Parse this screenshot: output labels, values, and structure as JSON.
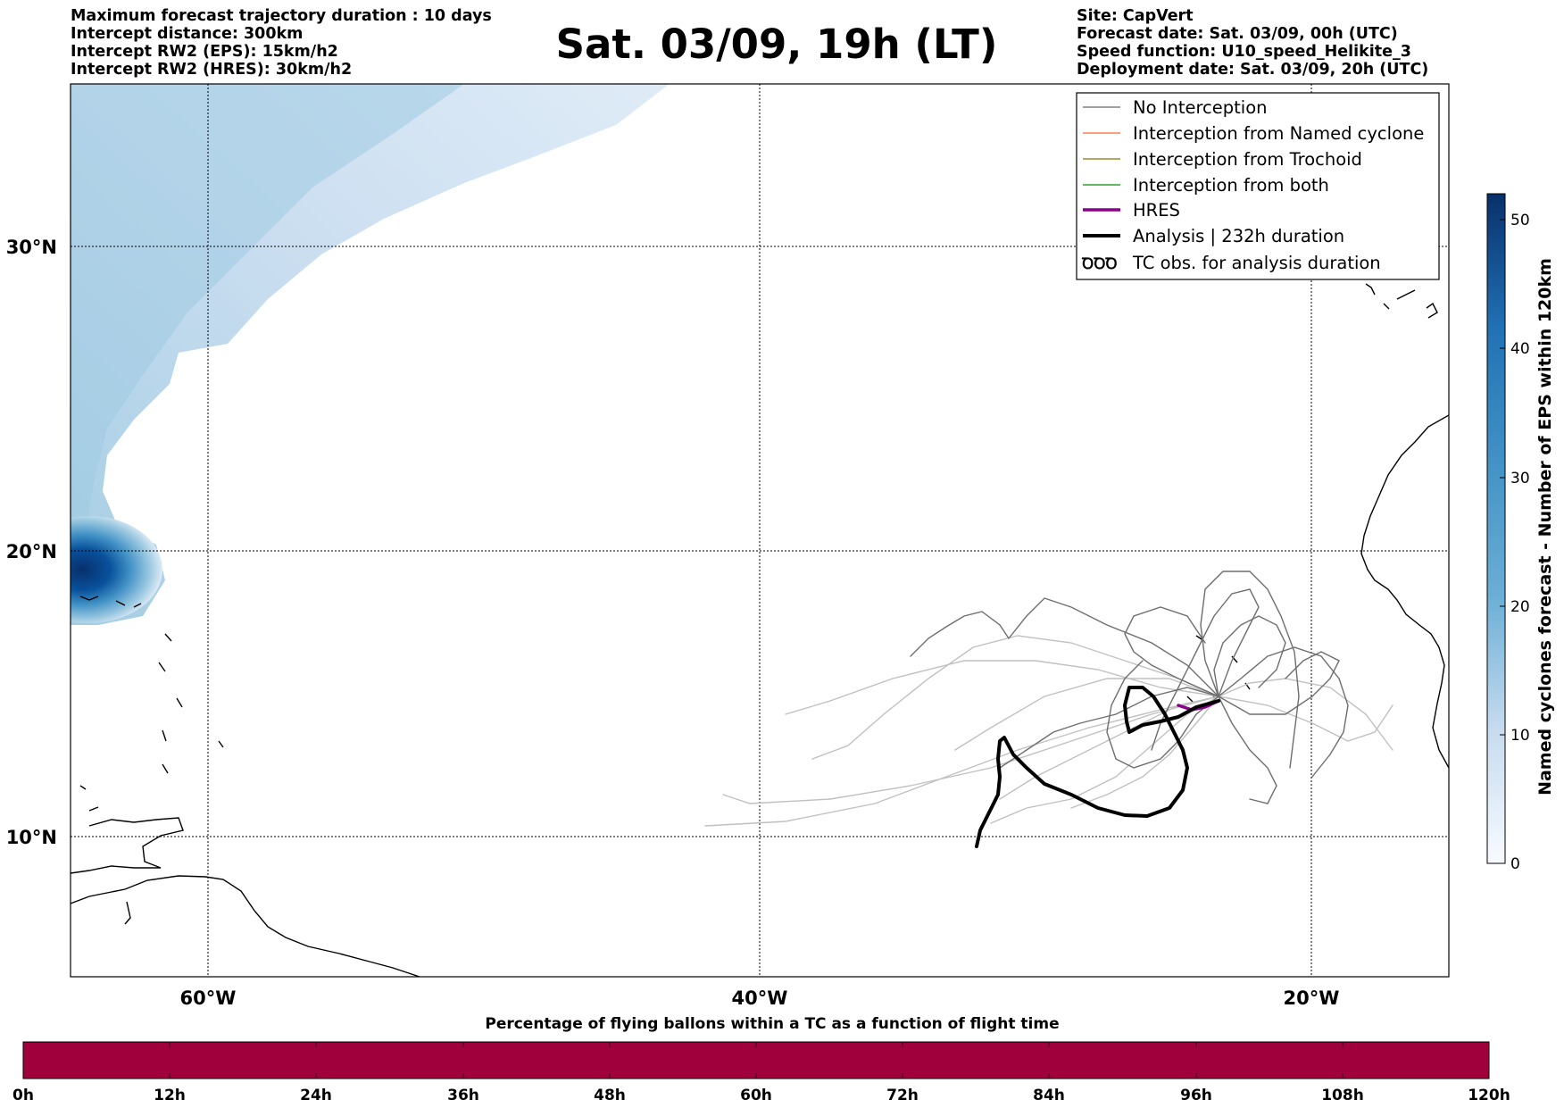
{
  "header": {
    "left_lines": [
      "Maximum forecast trajectory duration : 10 days",
      "Intercept distance: 300km",
      "Intercept RW2 (EPS):  15km/h2",
      "Intercept RW2 (HRES): 30km/h2"
    ],
    "title": "Sat. 03/09, 19h (LT)",
    "right_lines": [
      "Site: CapVert",
      "Forecast date: Sat. 03/09, 00h (UTC)",
      "Speed function: U10_speed_Helikite_3",
      "Deployment date: Sat. 03/09, 20h (UTC)"
    ]
  },
  "map": {
    "lat_labels": [
      "30°N",
      "20°N",
      "10°N"
    ],
    "lon_labels": [
      "60°W",
      "40°W",
      "20°W"
    ],
    "colors": {
      "density": "#08306b",
      "land_outline": "#000000",
      "trajectory": "#6e6e6e",
      "trajectory_light": "#c0c0c0"
    }
  },
  "legend": {
    "items": [
      {
        "label": "No Interception",
        "color": "#808080"
      },
      {
        "label": "Interception from Named cyclone",
        "color": "#ff7f50"
      },
      {
        "label": "Interception from Trochoid",
        "color": "#9a8c2a"
      },
      {
        "label": "Interception from both",
        "color": "#2ca02c"
      },
      {
        "label": "HRES",
        "color": "#8b008b"
      },
      {
        "label": "Analysis | 232h duration",
        "color": "#000000"
      },
      {
        "label": "TC obs. for analysis duration",
        "color": "#000000"
      }
    ],
    "tc_symbol": "ꝹꝹꝹ"
  },
  "colorbar": {
    "label": "Named cyclones forecast - Number of EPS within 120km",
    "ticks": [
      "0",
      "10",
      "20",
      "30",
      "40",
      "50"
    ],
    "range": [
      0,
      52
    ]
  },
  "bottom_bar": {
    "title": "Percentage of flying ballons within a TC as a function of flight time",
    "ticks": [
      "0h",
      "12h",
      "24h",
      "36h",
      "48h",
      "60h",
      "72h",
      "84h",
      "96h",
      "108h",
      "120h"
    ],
    "fill_color": "#a0003c"
  }
}
